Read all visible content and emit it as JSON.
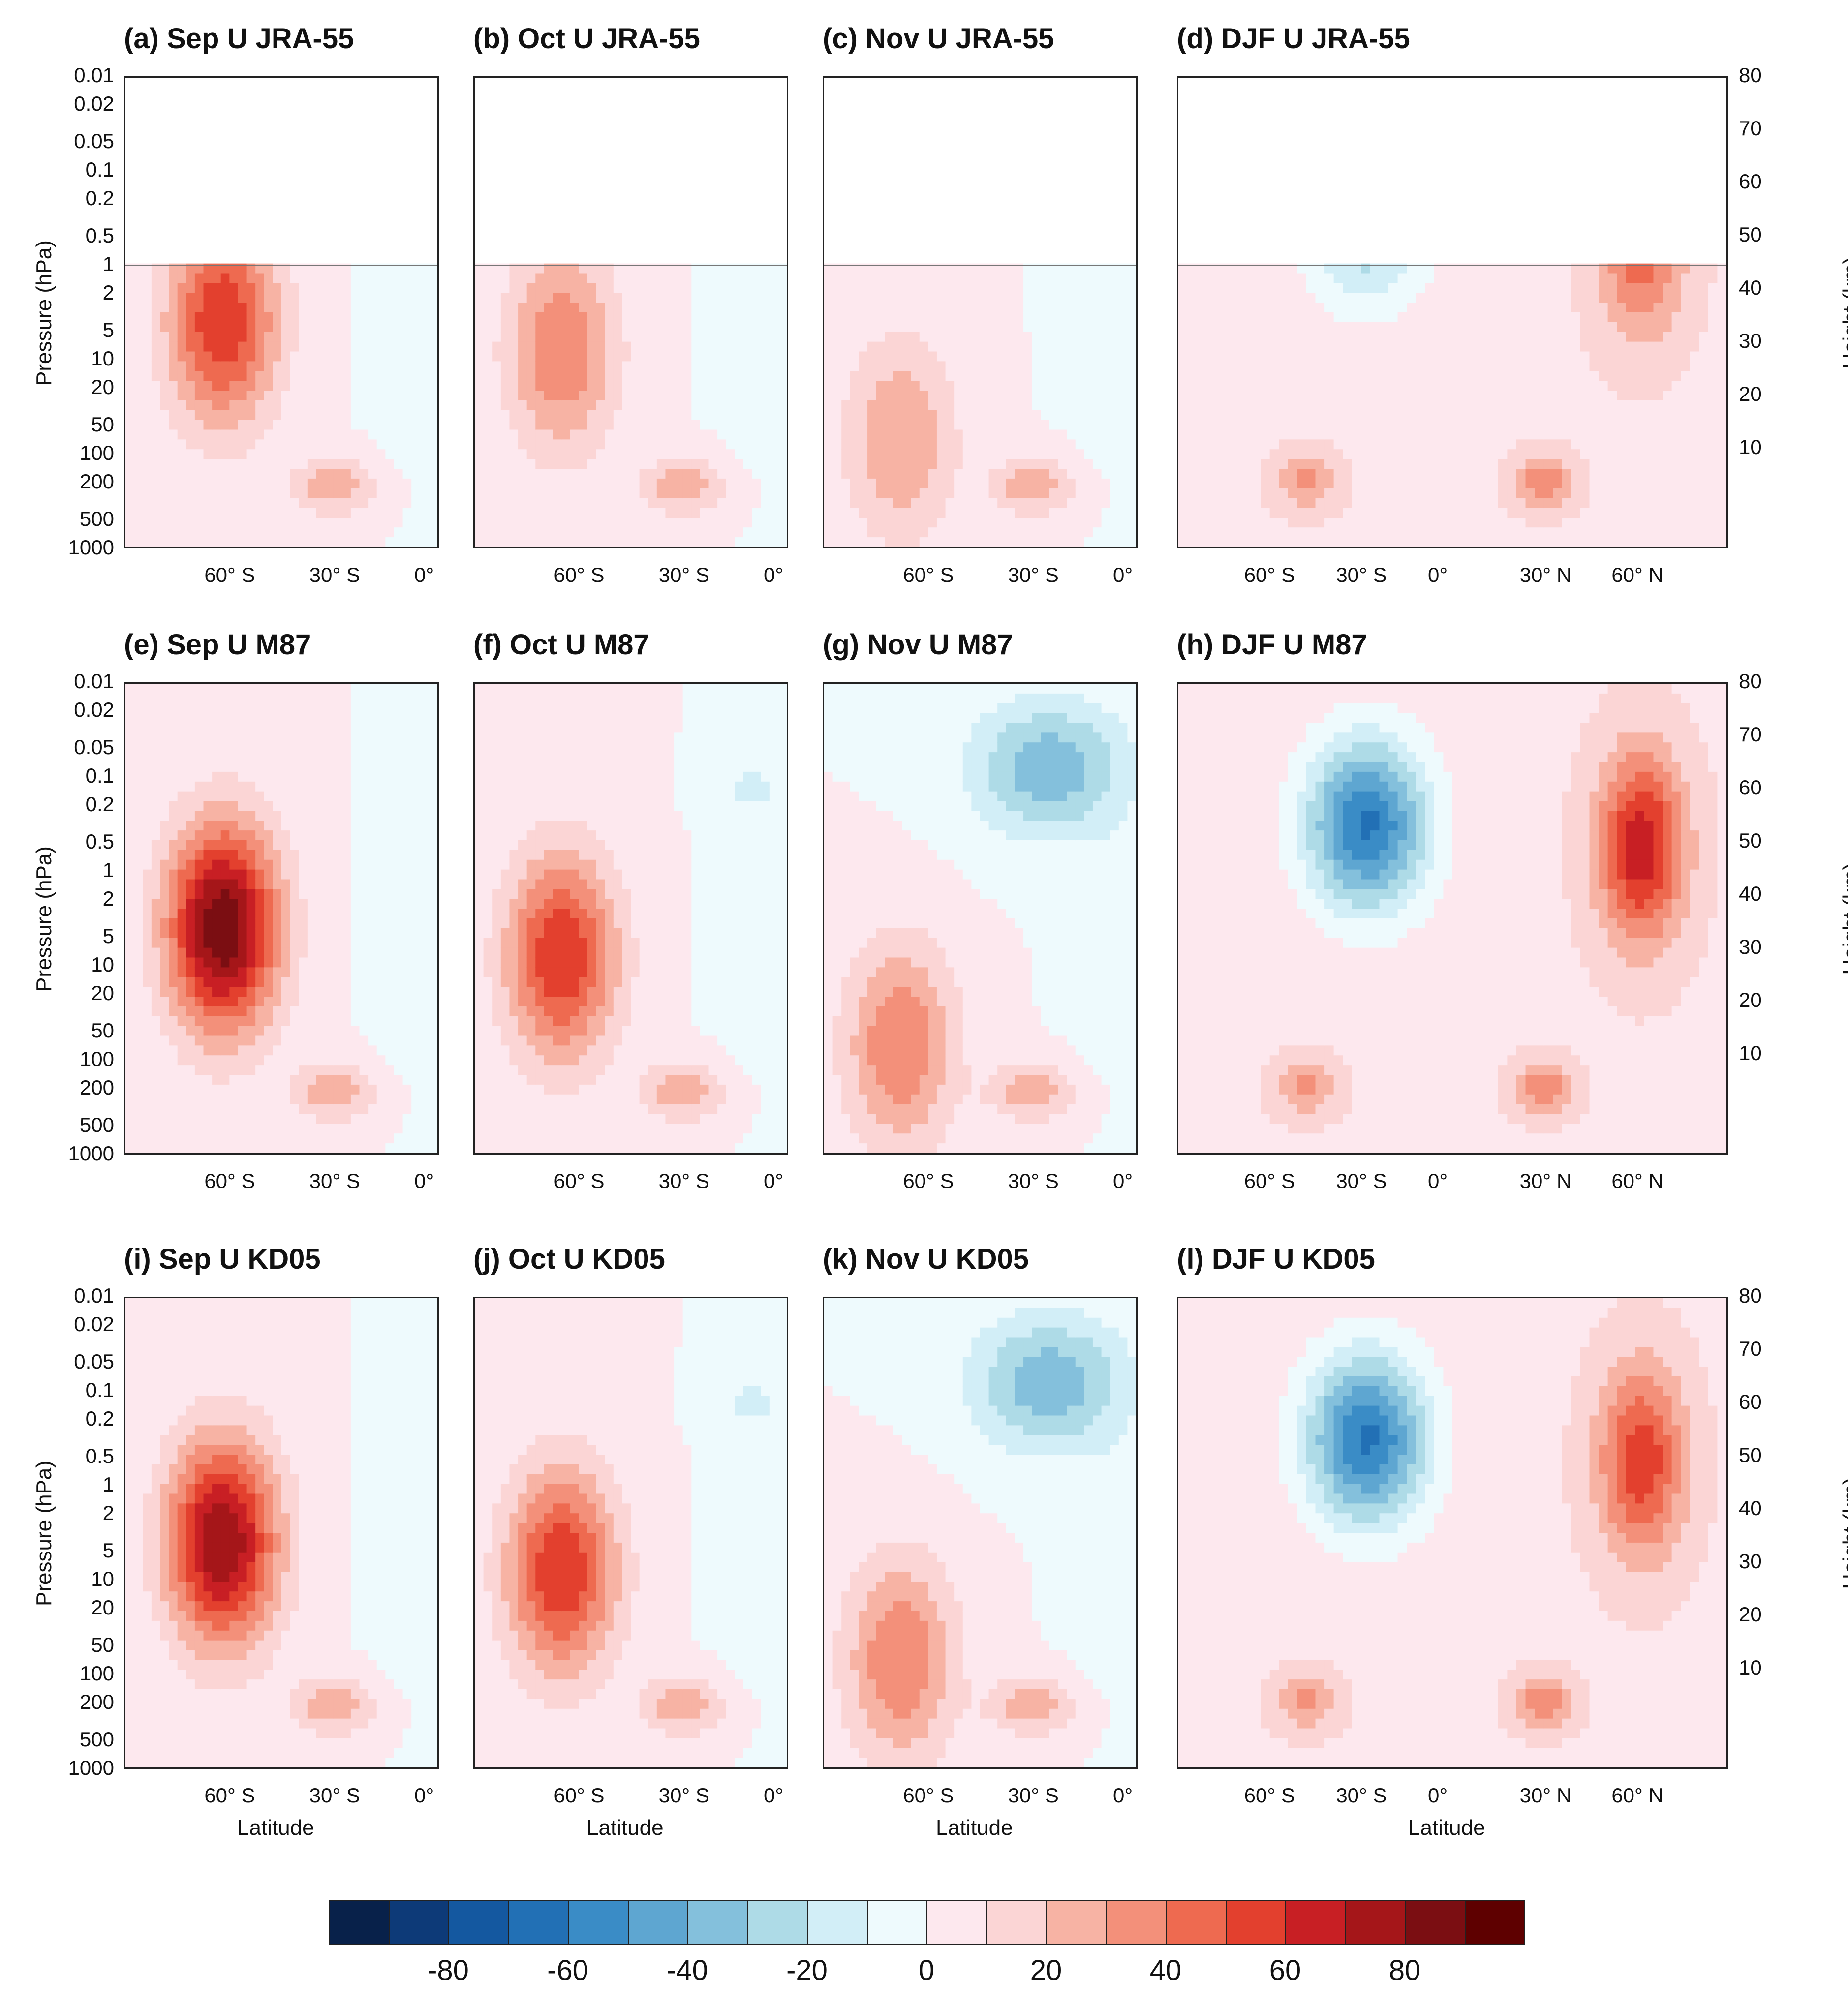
{
  "chart_data": {
    "type": "heatmap",
    "description_variable": "zonal mean zonal wind U",
    "colors": {
      "bands": [
        "#08214a",
        "#0d3a78",
        "#1458a0",
        "#2270b5",
        "#3a8cc6",
        "#5ea6d1",
        "#84c0dc",
        "#aedbe7",
        "#d2eef7",
        "#eefafd",
        "#fde8ee",
        "#fbd5d5",
        "#f7b3a4",
        "#f3907a",
        "#ee6a50",
        "#e3402e",
        "#c81f24",
        "#a51619",
        "#7b0e12",
        "#5e0000"
      ],
      "labels": [
        "-80",
        "-60",
        "-40",
        "-20",
        "0",
        "20",
        "40",
        "60",
        "80"
      ],
      "label_positions": [
        -80,
        -60,
        -40,
        -20,
        0,
        20,
        40,
        60,
        80
      ],
      "range": [
        -100,
        100
      ],
      "step": 10
    },
    "axes": {
      "pressure_label": "Pressure (hPa)",
      "height_label": "Height (km)",
      "latitude_label": "Latitude",
      "pressure_ticks": [
        "0.01",
        "0.02",
        "0.05",
        "0.1",
        "0.2",
        "0.5",
        "1",
        "2",
        "5",
        "10",
        "20",
        "50",
        "100",
        "200",
        "500",
        "1000"
      ],
      "height_ticks": [
        "80",
        "70",
        "60",
        "50",
        "40",
        "30",
        "20",
        "10"
      ],
      "sh_lat_ticks": [
        "60° S",
        "30° S",
        "0°"
      ],
      "global_lat_ticks": [
        "60° S",
        "30° S",
        "0°",
        "30° N",
        "60° N"
      ]
    },
    "panels": [
      {
        "id": "a",
        "title": "(a) Sep U JRA-55",
        "month": "Sep",
        "dataset": "JRA-55",
        "top_hpa": 1,
        "domain": "SH",
        "jet_max": 60
      },
      {
        "id": "b",
        "title": "(b) Oct U JRA-55",
        "month": "Oct",
        "dataset": "JRA-55",
        "top_hpa": 1,
        "domain": "SH",
        "jet_max": 40
      },
      {
        "id": "c",
        "title": "(c) Nov U JRA-55",
        "month": "Nov",
        "dataset": "JRA-55",
        "top_hpa": 1,
        "domain": "SH",
        "jet_max": 30
      },
      {
        "id": "d",
        "title": "(d) DJF U JRA-55",
        "month": "DJF",
        "dataset": "JRA-55",
        "top_hpa": 1,
        "domain": "global",
        "jet_max": 40
      },
      {
        "id": "e",
        "title": "(e) Sep U M87",
        "month": "Sep",
        "dataset": "M87",
        "top_hpa": 0.01,
        "domain": "SH",
        "jet_max": 90
      },
      {
        "id": "f",
        "title": "(f) Oct U M87",
        "month": "Oct",
        "dataset": "M87",
        "top_hpa": 0.01,
        "domain": "SH",
        "jet_max": 60
      },
      {
        "id": "g",
        "title": "(g) Nov U M87",
        "month": "Nov",
        "dataset": "M87",
        "top_hpa": 0.01,
        "domain": "SH",
        "jet_max": 40
      },
      {
        "id": "h",
        "title": "(h) DJF U M87",
        "month": "DJF",
        "dataset": "M87",
        "top_hpa": 0.01,
        "domain": "global",
        "jet_max": 60
      },
      {
        "id": "i",
        "title": "(i) Sep U KD05",
        "month": "Sep",
        "dataset": "KD05",
        "top_hpa": 0.01,
        "domain": "SH",
        "jet_max": 80
      },
      {
        "id": "j",
        "title": "(j) Oct U KD05",
        "month": "Oct",
        "dataset": "KD05",
        "top_hpa": 0.01,
        "domain": "SH",
        "jet_max": 60
      },
      {
        "id": "k",
        "title": "(k) Nov U KD05",
        "month": "Nov",
        "dataset": "KD05",
        "top_hpa": 0.01,
        "domain": "SH",
        "jet_max": 40
      },
      {
        "id": "l",
        "title": "(l) DJF U KD05",
        "month": "DJF",
        "dataset": "KD05",
        "top_hpa": 0.01,
        "domain": "global",
        "jet_max": 50
      }
    ]
  }
}
